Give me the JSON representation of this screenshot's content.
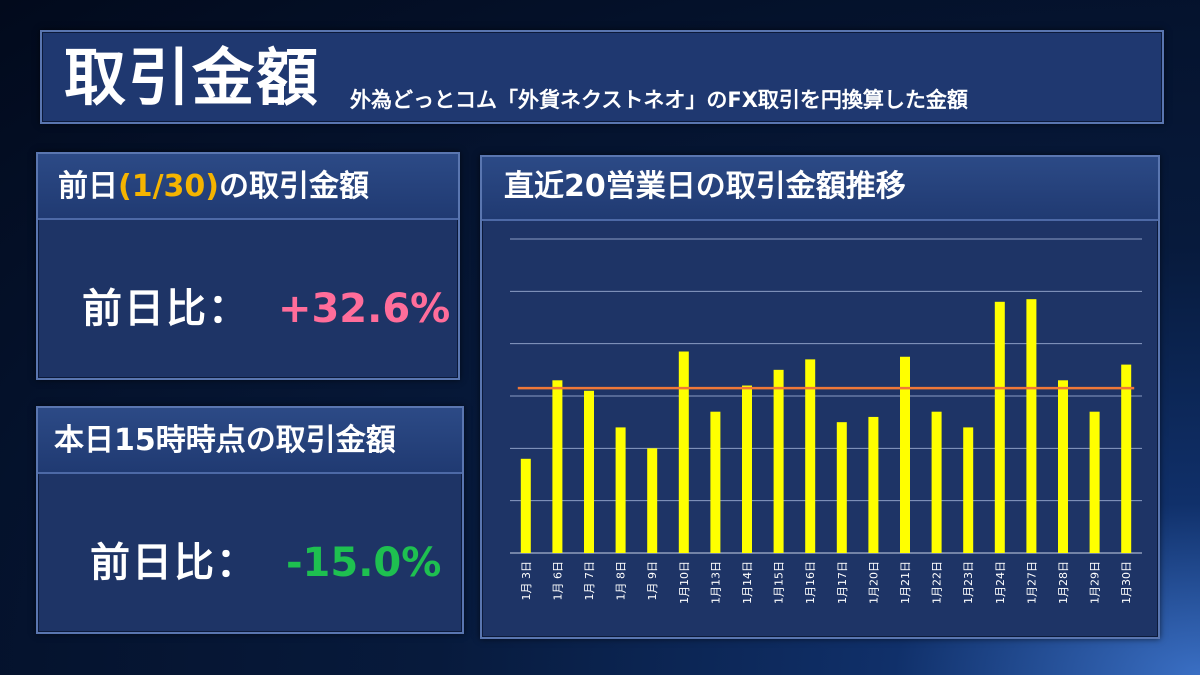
{
  "header": {
    "title": "取引金額",
    "subtitle": "外為どっとコム「外貨ネクストネオ」のFX取引を円換算した金額"
  },
  "previous_day": {
    "title_prefix": "前日",
    "title_date": "(1/30)",
    "title_suffix": "の取引金額",
    "label": "前日比：",
    "value": "+32.6%"
  },
  "today": {
    "title": "本日15時時点の取引金額",
    "label": "前日比：",
    "value": "-15.0%"
  },
  "colors": {
    "bar": "#ffff00",
    "average_line": "#f07838",
    "positive": "#ff6d9a",
    "negative": "#1ec050",
    "date_highlight": "#f5b400"
  },
  "chart_data": {
    "type": "bar",
    "title": "直近20営業日の取引金額推移",
    "categories": [
      "1月 3日",
      "1月 6日",
      "1月 7日",
      "1月 8日",
      "1月 9日",
      "1月10日",
      "1月13日",
      "1月14日",
      "1月15日",
      "1月16日",
      "1月17日",
      "1月20日",
      "1月21日",
      "1月22日",
      "1月23日",
      "1月24日",
      "1月27日",
      "1月28日",
      "1月29日",
      "1月30日"
    ],
    "values": [
      1.8,
      3.3,
      3.1,
      2.4,
      2.0,
      3.85,
      2.7,
      3.2,
      3.5,
      3.7,
      2.5,
      2.6,
      3.75,
      2.7,
      2.4,
      4.8,
      4.85,
      3.3,
      2.7,
      3.6
    ],
    "average": 3.15,
    "ylim": [
      0,
      6
    ],
    "gridlines": 6,
    "grid": true
  }
}
